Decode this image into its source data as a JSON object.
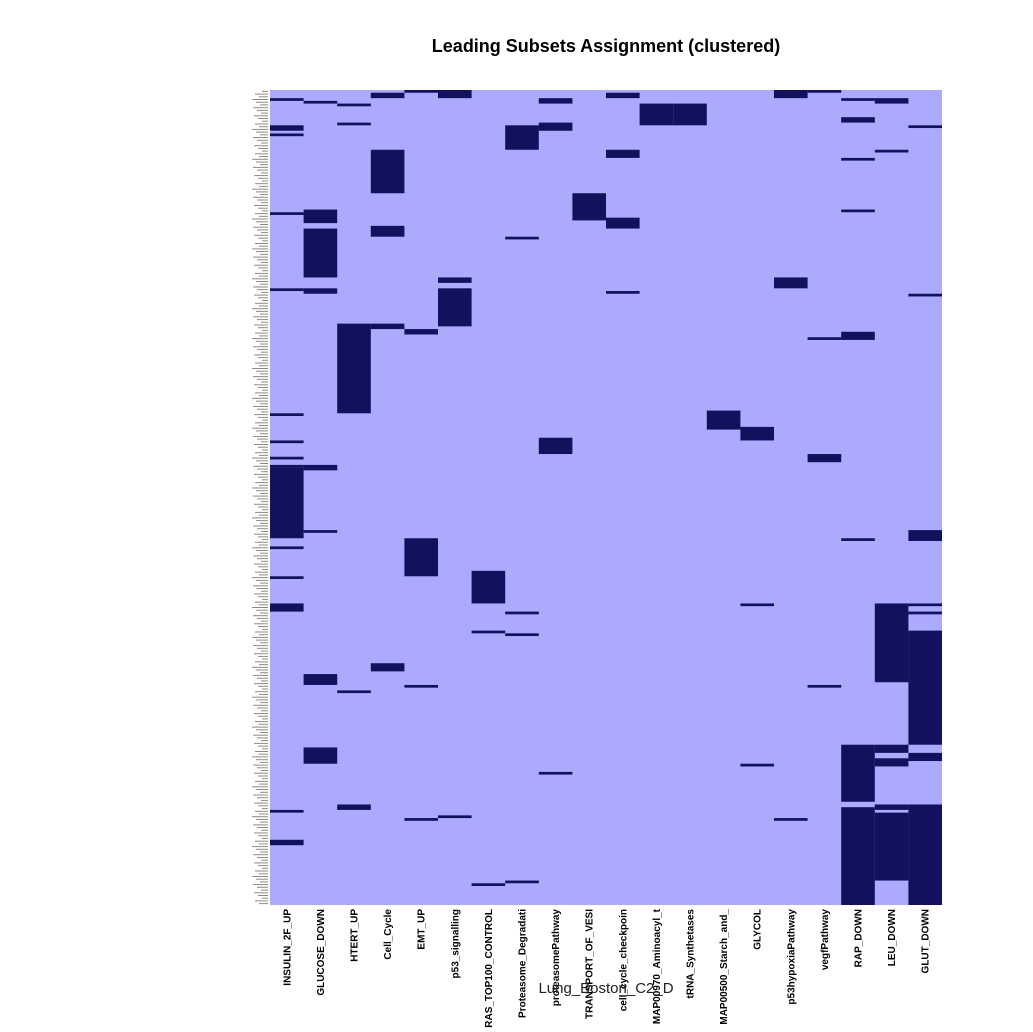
{
  "chart_data": {
    "type": "heatmap",
    "title": "Leading Subsets Assignment (clustered)",
    "xlabel": "Lung_Boston_C2_D",
    "columns": [
      "INSULIN_2F_UP",
      "GLUCOSE_DOWN",
      "HTERT_UP",
      "Cell_Cycle",
      "EMT_UP",
      "p53_signalling",
      "RAS_TOP100_CONTROL",
      "Proteasome_Degradati",
      "proteasomePathway",
      "TRANSPORT_OF_VESI",
      "cell_cycle_checkpoin",
      "MAP00970_Aminoacyl_t",
      "tRNA_Synthetases",
      "MAP00500_Starch_and_",
      "GLYCOL",
      "p53hypoxiaPathway",
      "vegfPathway",
      "RAP_DOWN",
      "LEU_DOWN",
      "GLUT_DOWN"
    ],
    "value_range": [
      0,
      1
    ],
    "colors": {
      "absent": "#aaaaff",
      "present": "#11115e"
    },
    "row_count": 300,
    "present_blocks": [
      {
        "column": "INSULIN_2F_UP",
        "rows": [
          [
            3,
            3
          ],
          [
            13,
            14
          ],
          [
            16,
            16
          ],
          [
            45,
            45
          ],
          [
            73,
            73
          ],
          [
            119,
            119
          ],
          [
            129,
            129
          ],
          [
            135,
            135
          ],
          [
            138,
            138
          ],
          [
            139,
            164
          ],
          [
            168,
            168
          ],
          [
            179,
            179
          ],
          [
            189,
            191
          ],
          [
            265,
            265
          ],
          [
            276,
            277
          ]
        ]
      },
      {
        "column": "GLUCOSE_DOWN",
        "rows": [
          [
            4,
            4
          ],
          [
            44,
            48
          ],
          [
            51,
            68
          ],
          [
            73,
            74
          ],
          [
            138,
            139
          ],
          [
            162,
            162
          ],
          [
            215,
            218
          ],
          [
            242,
            247
          ]
        ]
      },
      {
        "column": "HTERT_UP",
        "rows": [
          [
            5,
            5
          ],
          [
            12,
            12
          ],
          [
            86,
            118
          ],
          [
            221,
            221
          ],
          [
            263,
            264
          ]
        ]
      },
      {
        "column": "Cell_Cycle",
        "rows": [
          [
            1,
            2
          ],
          [
            22,
            37
          ],
          [
            50,
            53
          ],
          [
            86,
            87
          ],
          [
            211,
            213
          ]
        ]
      },
      {
        "column": "EMT_UP",
        "rows": [
          [
            0,
            0
          ],
          [
            88,
            89
          ],
          [
            165,
            178
          ],
          [
            219,
            219
          ],
          [
            268,
            268
          ]
        ]
      },
      {
        "column": "p53_signalling",
        "rows": [
          [
            0,
            2
          ],
          [
            69,
            70
          ],
          [
            73,
            86
          ],
          [
            267,
            267
          ]
        ]
      },
      {
        "column": "RAS_TOP100_CONTROL",
        "rows": [
          [
            177,
            188
          ],
          [
            199,
            199
          ],
          [
            292,
            292
          ]
        ]
      },
      {
        "column": "Proteasome_Degradati",
        "rows": [
          [
            13,
            21
          ],
          [
            54,
            54
          ],
          [
            192,
            192
          ],
          [
            200,
            200
          ],
          [
            291,
            291
          ]
        ]
      },
      {
        "column": "proteasomePathway",
        "rows": [
          [
            3,
            4
          ],
          [
            12,
            14
          ],
          [
            128,
            133
          ],
          [
            251,
            251
          ]
        ]
      },
      {
        "column": "TRANSPORT_OF_VESI",
        "rows": [
          [
            38,
            47
          ]
        ]
      },
      {
        "column": "cell_cycle_checkpoin",
        "rows": [
          [
            1,
            2
          ],
          [
            22,
            24
          ],
          [
            47,
            50
          ],
          [
            74,
            74
          ]
        ]
      },
      {
        "column": "MAP00970_Aminoacyl_t",
        "rows": [
          [
            5,
            12
          ]
        ]
      },
      {
        "column": "tRNA_Synthetases",
        "rows": [
          [
            5,
            12
          ]
        ]
      },
      {
        "column": "MAP00500_Starch_and_",
        "rows": [
          [
            118,
            124
          ]
        ]
      },
      {
        "column": "GLYCOL",
        "rows": [
          [
            124,
            128
          ],
          [
            189,
            189
          ],
          [
            248,
            248
          ]
        ]
      },
      {
        "column": "p53hypoxiaPathway",
        "rows": [
          [
            0,
            2
          ],
          [
            69,
            72
          ],
          [
            268,
            268
          ]
        ]
      },
      {
        "column": "vegfPathway",
        "rows": [
          [
            0,
            0
          ],
          [
            91,
            91
          ],
          [
            134,
            136
          ],
          [
            219,
            219
          ]
        ]
      },
      {
        "column": "RAP_DOWN",
        "rows": [
          [
            3,
            3
          ],
          [
            10,
            11
          ],
          [
            25,
            25
          ],
          [
            44,
            44
          ],
          [
            89,
            91
          ],
          [
            165,
            165
          ],
          [
            241,
            261
          ],
          [
            264,
            299
          ]
        ]
      },
      {
        "column": "LEU_DOWN",
        "rows": [
          [
            3,
            4
          ],
          [
            22,
            22
          ],
          [
            189,
            217
          ],
          [
            241,
            243
          ],
          [
            246,
            248
          ],
          [
            263,
            264
          ],
          [
            266,
            290
          ]
        ]
      },
      {
        "column": "GLUT_DOWN",
        "rows": [
          [
            13,
            13
          ],
          [
            75,
            75
          ],
          [
            162,
            165
          ],
          [
            189,
            189
          ],
          [
            192,
            192
          ],
          [
            199,
            240
          ],
          [
            244,
            246
          ],
          [
            263,
            299
          ]
        ]
      }
    ],
    "row_labels_legible": false
  }
}
